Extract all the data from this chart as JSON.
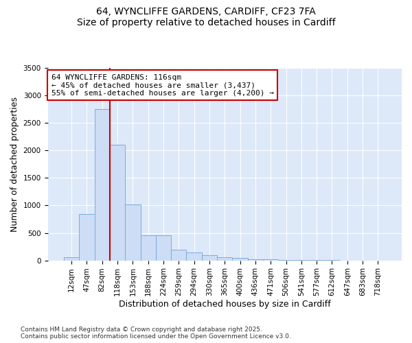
{
  "title": "64, WYNCLIFFE GARDENS, CARDIFF, CF23 7FA",
  "subtitle": "Size of property relative to detached houses in Cardiff",
  "xlabel": "Distribution of detached houses by size in Cardiff",
  "ylabel": "Number of detached properties",
  "categories": [
    "12sqm",
    "47sqm",
    "82sqm",
    "118sqm",
    "153sqm",
    "188sqm",
    "224sqm",
    "259sqm",
    "294sqm",
    "330sqm",
    "365sqm",
    "400sqm",
    "436sqm",
    "471sqm",
    "506sqm",
    "541sqm",
    "577sqm",
    "612sqm",
    "647sqm",
    "683sqm",
    "718sqm"
  ],
  "values": [
    55,
    840,
    2750,
    2100,
    1020,
    460,
    460,
    200,
    150,
    100,
    55,
    40,
    25,
    18,
    8,
    5,
    3,
    2,
    1,
    1,
    1
  ],
  "bar_color": "#ccddf5",
  "bar_edge_color": "#7aaddd",
  "vline_color": "#cc0000",
  "vline_x_index": 2.5,
  "annotation_text": "64 WYNCLIFFE GARDENS: 116sqm\n← 45% of detached houses are smaller (3,437)\n55% of semi-detached houses are larger (4,200) →",
  "annotation_box_color": "#ffffff",
  "annotation_box_edge": "#cc0000",
  "ylim": [
    0,
    3500
  ],
  "yticks": [
    0,
    500,
    1000,
    1500,
    2000,
    2500,
    3000,
    3500
  ],
  "fig_background": "#ffffff",
  "plot_background": "#dde8f8",
  "grid_color": "#ffffff",
  "footer_line1": "Contains HM Land Registry data © Crown copyright and database right 2025.",
  "footer_line2": "Contains public sector information licensed under the Open Government Licence v3.0.",
  "title_fontsize": 10,
  "tick_fontsize": 7.5,
  "label_fontsize": 9,
  "annotation_fontsize": 8
}
